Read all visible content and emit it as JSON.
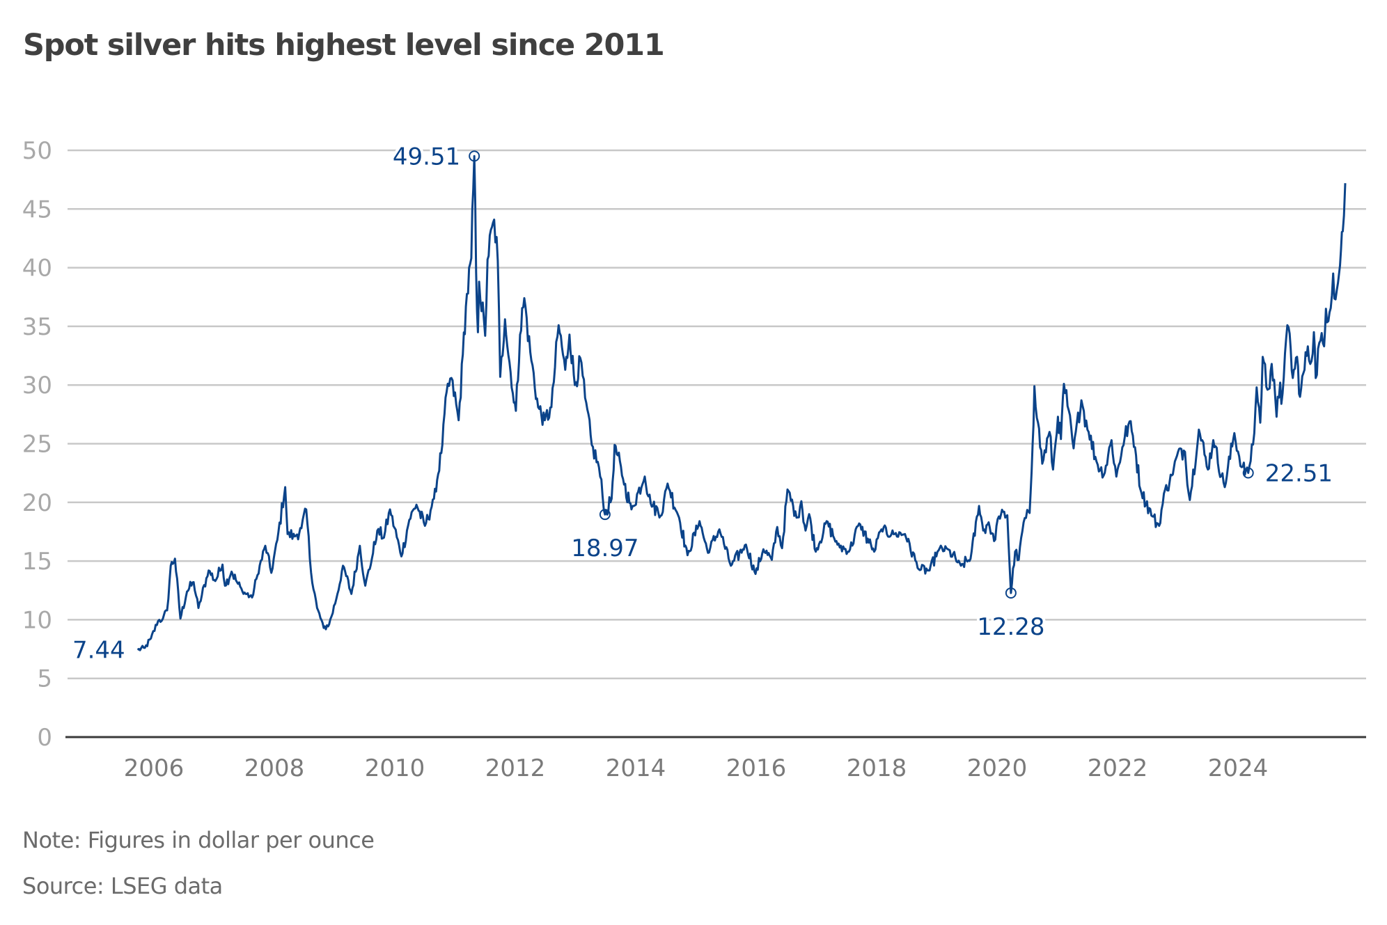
{
  "title": "Spot silver hits highest level since 2011",
  "note": "Note: Figures in dollar per ounce",
  "source": "Source: LSEG data",
  "colors": {
    "line": "#0b4389",
    "grid": "#c8c8c8",
    "axis": "#3a3a3a",
    "title": "#404040"
  },
  "chart_data": {
    "type": "line",
    "title": "Spot silver hits highest level since 2011",
    "xlabel": "",
    "ylabel": "",
    "units": "US dollars per ounce",
    "xlim": [
      2005.7,
      2025.8
    ],
    "ylim": [
      0,
      50
    ],
    "grid": true,
    "legend": "none",
    "y_ticks": [
      0,
      5,
      10,
      15,
      20,
      25,
      30,
      35,
      40,
      45,
      50
    ],
    "x_ticks": [
      2006,
      2008,
      2010,
      2012,
      2014,
      2016,
      2018,
      2020,
      2022,
      2024
    ],
    "x_tick_labels": [
      "2006",
      "2008",
      "2010",
      "2012",
      "2014",
      "2016",
      "2018",
      "2020",
      "2022",
      "2024"
    ],
    "series": [
      {
        "name": "Spot silver",
        "points": [
          [
            2005.73,
            7.44
          ],
          [
            2005.85,
            7.6
          ],
          [
            2005.95,
            8.4
          ],
          [
            2006.07,
            9.9
          ],
          [
            2006.15,
            10.1
          ],
          [
            2006.22,
            10.8
          ],
          [
            2006.28,
            14.6
          ],
          [
            2006.35,
            15.2
          ],
          [
            2006.44,
            10.1
          ],
          [
            2006.55,
            12.4
          ],
          [
            2006.66,
            13.2
          ],
          [
            2006.74,
            11.0
          ],
          [
            2006.91,
            14.2
          ],
          [
            2007.02,
            13.3
          ],
          [
            2007.14,
            14.7
          ],
          [
            2007.18,
            12.9
          ],
          [
            2007.29,
            14.1
          ],
          [
            2007.38,
            13.2
          ],
          [
            2007.47,
            12.4
          ],
          [
            2007.63,
            11.9
          ],
          [
            2007.72,
            13.8
          ],
          [
            2007.85,
            16.3
          ],
          [
            2007.95,
            14.0
          ],
          [
            2008.05,
            16.8
          ],
          [
            2008.18,
            21.3
          ],
          [
            2008.22,
            17.3
          ],
          [
            2008.34,
            17.1
          ],
          [
            2008.45,
            17.8
          ],
          [
            2008.53,
            19.4
          ],
          [
            2008.61,
            14.0
          ],
          [
            2008.71,
            11.0
          ],
          [
            2008.82,
            9.3
          ],
          [
            2008.91,
            9.6
          ],
          [
            2009.03,
            11.8
          ],
          [
            2009.14,
            14.6
          ],
          [
            2009.28,
            12.2
          ],
          [
            2009.42,
            16.3
          ],
          [
            2009.51,
            12.9
          ],
          [
            2009.62,
            15.2
          ],
          [
            2009.71,
            17.6
          ],
          [
            2009.82,
            17.0
          ],
          [
            2009.92,
            19.4
          ],
          [
            2010.11,
            15.4
          ],
          [
            2010.24,
            18.5
          ],
          [
            2010.36,
            19.8
          ],
          [
            2010.5,
            18.0
          ],
          [
            2010.65,
            20.3
          ],
          [
            2010.79,
            24.9
          ],
          [
            2010.86,
            29.4
          ],
          [
            2010.94,
            30.6
          ],
          [
            2011.06,
            27.0
          ],
          [
            2011.13,
            32.6
          ],
          [
            2011.18,
            36.7
          ],
          [
            2011.27,
            40.8
          ],
          [
            2011.32,
            49.51
          ],
          [
            2011.35,
            39.6
          ],
          [
            2011.38,
            34.5
          ],
          [
            2011.4,
            38.8
          ],
          [
            2011.5,
            34.2
          ],
          [
            2011.54,
            40.7
          ],
          [
            2011.65,
            44.1
          ],
          [
            2011.71,
            40.6
          ],
          [
            2011.75,
            30.7
          ],
          [
            2011.83,
            35.6
          ],
          [
            2011.96,
            29.3
          ],
          [
            2012.01,
            27.8
          ],
          [
            2012.08,
            34.3
          ],
          [
            2012.15,
            37.4
          ],
          [
            2012.25,
            32.8
          ],
          [
            2012.38,
            28.1
          ],
          [
            2012.49,
            27.0
          ],
          [
            2012.6,
            28.1
          ],
          [
            2012.72,
            35.1
          ],
          [
            2012.83,
            31.3
          ],
          [
            2012.9,
            34.3
          ],
          [
            2012.99,
            30.0
          ],
          [
            2013.08,
            32.3
          ],
          [
            2013.16,
            28.9
          ],
          [
            2013.27,
            24.9
          ],
          [
            2013.39,
            23.0
          ],
          [
            2013.49,
            18.97
          ],
          [
            2013.6,
            20.3
          ],
          [
            2013.65,
            24.9
          ],
          [
            2013.79,
            22.0
          ],
          [
            2013.93,
            19.4
          ],
          [
            2014.15,
            22.2
          ],
          [
            2014.25,
            19.9
          ],
          [
            2014.43,
            18.9
          ],
          [
            2014.53,
            21.6
          ],
          [
            2014.72,
            18.7
          ],
          [
            2014.86,
            15.5
          ],
          [
            2015.06,
            18.4
          ],
          [
            2015.2,
            15.7
          ],
          [
            2015.39,
            17.7
          ],
          [
            2015.58,
            14.6
          ],
          [
            2015.83,
            16.4
          ],
          [
            2015.99,
            13.9
          ],
          [
            2016.12,
            16.0
          ],
          [
            2016.26,
            15.1
          ],
          [
            2016.35,
            17.9
          ],
          [
            2016.43,
            16.1
          ],
          [
            2016.52,
            21.1
          ],
          [
            2016.67,
            18.7
          ],
          [
            2016.75,
            20.1
          ],
          [
            2016.82,
            17.6
          ],
          [
            2016.88,
            19.0
          ],
          [
            2016.99,
            15.8
          ],
          [
            2017.17,
            18.4
          ],
          [
            2017.35,
            16.4
          ],
          [
            2017.54,
            15.8
          ],
          [
            2017.71,
            18.2
          ],
          [
            2017.96,
            15.8
          ],
          [
            2018.08,
            17.7
          ],
          [
            2018.3,
            17.3
          ],
          [
            2018.47,
            17.3
          ],
          [
            2018.7,
            14.3
          ],
          [
            2018.88,
            14.2
          ],
          [
            2019.01,
            15.8
          ],
          [
            2019.16,
            16.1
          ],
          [
            2019.4,
            14.6
          ],
          [
            2019.56,
            15.2
          ],
          [
            2019.7,
            19.7
          ],
          [
            2019.77,
            17.6
          ],
          [
            2019.86,
            18.3
          ],
          [
            2019.95,
            16.7
          ],
          [
            2020.03,
            18.8
          ],
          [
            2020.17,
            18.9
          ],
          [
            2020.23,
            12.28
          ],
          [
            2020.3,
            15.8
          ],
          [
            2020.36,
            15.1
          ],
          [
            2020.44,
            18.3
          ],
          [
            2020.54,
            19.1
          ],
          [
            2020.59,
            24.9
          ],
          [
            2020.62,
            29.9
          ],
          [
            2020.68,
            26.8
          ],
          [
            2020.75,
            23.3
          ],
          [
            2020.87,
            26.0
          ],
          [
            2020.93,
            22.8
          ],
          [
            2021.01,
            27.3
          ],
          [
            2021.06,
            25.4
          ],
          [
            2021.11,
            30.1
          ],
          [
            2021.17,
            28.2
          ],
          [
            2021.27,
            24.6
          ],
          [
            2021.4,
            28.7
          ],
          [
            2021.52,
            26.0
          ],
          [
            2021.65,
            23.5
          ],
          [
            2021.77,
            22.3
          ],
          [
            2021.9,
            25.3
          ],
          [
            2021.98,
            22.2
          ],
          [
            2022.08,
            24.7
          ],
          [
            2022.2,
            26.9
          ],
          [
            2022.29,
            24.7
          ],
          [
            2022.38,
            21.1
          ],
          [
            2022.58,
            18.8
          ],
          [
            2022.69,
            18.0
          ],
          [
            2022.79,
            21.1
          ],
          [
            2022.9,
            22.3
          ],
          [
            2023.04,
            24.6
          ],
          [
            2023.12,
            24.3
          ],
          [
            2023.2,
            20.2
          ],
          [
            2023.35,
            26.2
          ],
          [
            2023.5,
            22.8
          ],
          [
            2023.59,
            25.3
          ],
          [
            2023.78,
            21.3
          ],
          [
            2023.94,
            25.9
          ],
          [
            2024.06,
            23.0
          ],
          [
            2024.17,
            22.51
          ],
          [
            2024.27,
            25.9
          ],
          [
            2024.31,
            29.8
          ],
          [
            2024.37,
            26.8
          ],
          [
            2024.41,
            32.4
          ],
          [
            2024.49,
            29.6
          ],
          [
            2024.56,
            31.8
          ],
          [
            2024.64,
            27.3
          ],
          [
            2024.7,
            30.2
          ],
          [
            2024.72,
            28.4
          ],
          [
            2024.78,
            32.7
          ],
          [
            2024.84,
            34.9
          ],
          [
            2024.91,
            30.6
          ],
          [
            2024.98,
            32.4
          ],
          [
            2025.03,
            29.0
          ],
          [
            2025.16,
            33.3
          ],
          [
            2025.2,
            31.8
          ],
          [
            2025.26,
            34.5
          ],
          [
            2025.29,
            30.6
          ],
          [
            2025.35,
            33.6
          ],
          [
            2025.43,
            33.3
          ],
          [
            2025.46,
            36.5
          ],
          [
            2025.52,
            36.2
          ],
          [
            2025.58,
            39.5
          ],
          [
            2025.62,
            37.3
          ],
          [
            2025.66,
            38.7
          ],
          [
            2025.71,
            41.5
          ],
          [
            2025.74,
            43.1
          ],
          [
            2025.78,
            47.2
          ]
        ]
      }
    ],
    "annotations": [
      {
        "label": "7.44",
        "x": 2005.73,
        "y": 7.44,
        "marker": false,
        "position": "left"
      },
      {
        "label": "49.51",
        "x": 2011.32,
        "y": 49.51,
        "marker": true,
        "position": "left"
      },
      {
        "label": "18.97",
        "x": 2013.49,
        "y": 18.97,
        "marker": true,
        "position": "below"
      },
      {
        "label": "12.28",
        "x": 2020.23,
        "y": 12.28,
        "marker": true,
        "position": "below"
      },
      {
        "label": "22.51",
        "x": 2024.17,
        "y": 22.51,
        "marker": true,
        "position": "right"
      }
    ]
  }
}
